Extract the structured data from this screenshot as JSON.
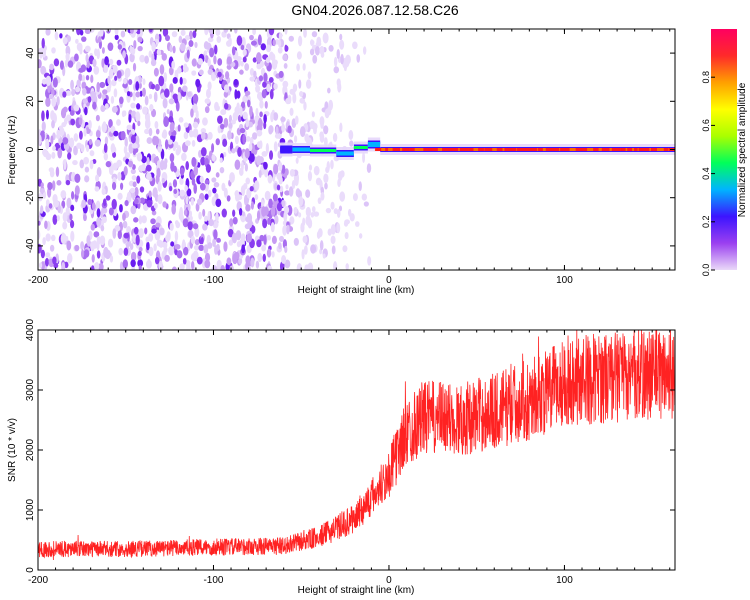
{
  "title": "GN04.2026.087.12.58.C26",
  "chart_data": [
    {
      "type": "heatmap",
      "xlabel": "Height of straight line (km)",
      "ylabel": "Frequency (Hz)",
      "xlim": [
        -200,
        163
      ],
      "ylim": [
        -50,
        50
      ],
      "xticks": [
        -200,
        -100,
        0,
        100
      ],
      "yticks": [
        -40,
        -20,
        0,
        20,
        40
      ],
      "grid": false,
      "colorbar": {
        "label": "Normalized spectral amplitude",
        "range": [
          0,
          1
        ],
        "ticks": [
          "0.0",
          "0.2",
          "0.4",
          "0.6",
          "0.8"
        ],
        "colors": [
          "#ead9f8",
          "#9b40f0",
          "#3c14ff",
          "#00b4ff",
          "#00ff5a",
          "#aaff00",
          "#ffff00",
          "#ffa000",
          "#ff2a2a",
          "#ff0060"
        ]
      },
      "features": {
        "noise_region_x": [
          -200,
          -20
        ],
        "tone_x": [
          -60,
          163
        ],
        "tone_frequency_hz": 0
      }
    },
    {
      "type": "line",
      "xlabel": "Height of straight line (km)",
      "ylabel": "SNR (10 * v/v)",
      "xlim": [
        -200,
        163
      ],
      "ylim": [
        0,
        4000
      ],
      "xticks": [
        -200,
        -100,
        0,
        100
      ],
      "yticks": [
        0,
        1000,
        2000,
        3000,
        4000
      ],
      "color": "#ff2222",
      "series": [
        {
          "x": [
            -200,
            -150,
            -100,
            -60,
            -40,
            -20,
            -10,
            0,
            10,
            20,
            40,
            60,
            80,
            90,
            100,
            120,
            140,
            163
          ],
          "values": [
            350,
            350,
            380,
            400,
            550,
            850,
            1200,
            1600,
            2300,
            2550,
            2500,
            2650,
            2850,
            2950,
            3150,
            3200,
            3250,
            3300
          ]
        }
      ]
    }
  ]
}
